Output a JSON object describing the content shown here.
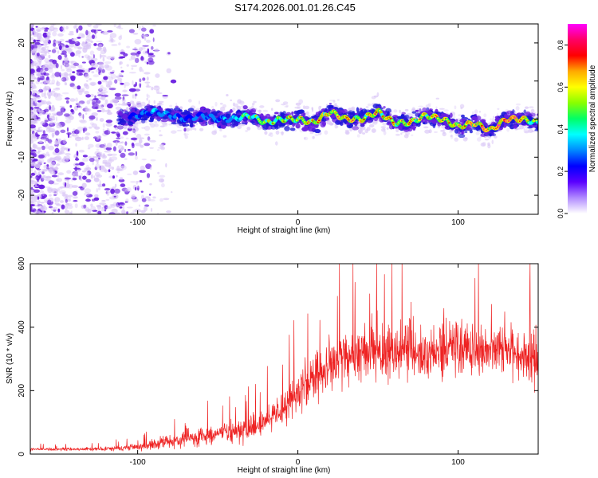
{
  "page": {
    "title": "S174.2026.001.01.26.C45"
  },
  "colors": {
    "snr_line": "#ee2222",
    "spectro_low": "#d8c4f6",
    "spectro_mid": "#6a1fe0",
    "spectro_core": "#1a17d8",
    "colorbar_stops": [
      "#ffffff",
      "#b08aff",
      "#5a00ff",
      "#0000ff",
      "#0088ff",
      "#00ffff",
      "#00ff66",
      "#88ff00",
      "#ffff00",
      "#ffaa00",
      "#ff0000",
      "#ff0066",
      "#ff00ff"
    ]
  },
  "chart_data": [
    {
      "type": "heatmap",
      "title": "S174.2026.001.01.26.C45",
      "xlabel": "Height of straight line (km)",
      "ylabel": "Frequency (Hz)",
      "xlim": [
        -167,
        150
      ],
      "ylim": [
        -25,
        25
      ],
      "xticks": [
        -100,
        0,
        100
      ],
      "xtick_labels": [
        "-100",
        "0",
        "100"
      ],
      "yticks": [
        -20,
        -10,
        0,
        10,
        20
      ],
      "ytick_labels": [
        "-20",
        "-10",
        "0",
        "10",
        "20"
      ],
      "colorbar": {
        "label": "Normalized spectral amplitude",
        "range": [
          0.0,
          0.9
        ],
        "ticks": [
          0.0,
          0.2,
          0.4,
          0.6,
          0.8
        ],
        "tick_labels": [
          "0.0",
          "0.2",
          "0.4",
          "0.6",
          "0.8"
        ]
      },
      "ridge": {
        "x": [
          -110,
          -100,
          -90,
          -80,
          -70,
          -60,
          -50,
          -40,
          -30,
          -20,
          -10,
          0,
          10,
          20,
          30,
          40,
          50,
          60,
          70,
          80,
          90,
          100,
          110,
          120,
          130,
          140,
          150
        ],
        "freq": [
          0,
          1,
          2,
          1,
          0,
          1,
          0,
          0,
          1,
          -1,
          0,
          0,
          -1,
          2,
          0,
          0,
          2,
          -1,
          -1,
          1,
          0,
          -2,
          -1,
          -3,
          0,
          0,
          -1
        ],
        "amplitude": [
          0.25,
          0.35,
          0.4,
          0.4,
          0.35,
          0.35,
          0.4,
          0.45,
          0.55,
          0.6,
          0.62,
          0.65,
          0.68,
          0.72,
          0.72,
          0.7,
          0.68,
          0.68,
          0.7,
          0.72,
          0.7,
          0.72,
          0.75,
          0.8,
          0.85,
          0.72,
          0.65
        ]
      }
    },
    {
      "type": "line",
      "xlabel": "Height of straight line (km)",
      "ylabel": "SNR (10 * v/v)",
      "xlim": [
        -167,
        150
      ],
      "ylim": [
        0,
        600
      ],
      "xticks": [
        -100,
        0,
        100
      ],
      "xtick_labels": [
        "-100",
        "0",
        "100"
      ],
      "yticks": [
        0,
        200,
        400,
        600
      ],
      "ytick_labels": [
        "0",
        "200",
        "400",
        "600"
      ],
      "envelope": {
        "x": [
          -167,
          -140,
          -120,
          -100,
          -90,
          -80,
          -70,
          -60,
          -50,
          -40,
          -30,
          -20,
          -10,
          0,
          10,
          20,
          30,
          40,
          50,
          60,
          70,
          80,
          90,
          100,
          110,
          120,
          130,
          140,
          150
        ],
        "mean": [
          15,
          15,
          17,
          22,
          30,
          40,
          50,
          55,
          60,
          70,
          80,
          100,
          140,
          190,
          240,
          280,
          310,
          320,
          320,
          320,
          330,
          320,
          330,
          340,
          330,
          330,
          320,
          310,
          300
        ],
        "spread": [
          8,
          8,
          10,
          15,
          25,
          35,
          50,
          45,
          40,
          55,
          60,
          70,
          90,
          100,
          110,
          140,
          140,
          130,
          140,
          140,
          140,
          140,
          150,
          150,
          130,
          120,
          110,
          130,
          140
        ]
      }
    }
  ]
}
